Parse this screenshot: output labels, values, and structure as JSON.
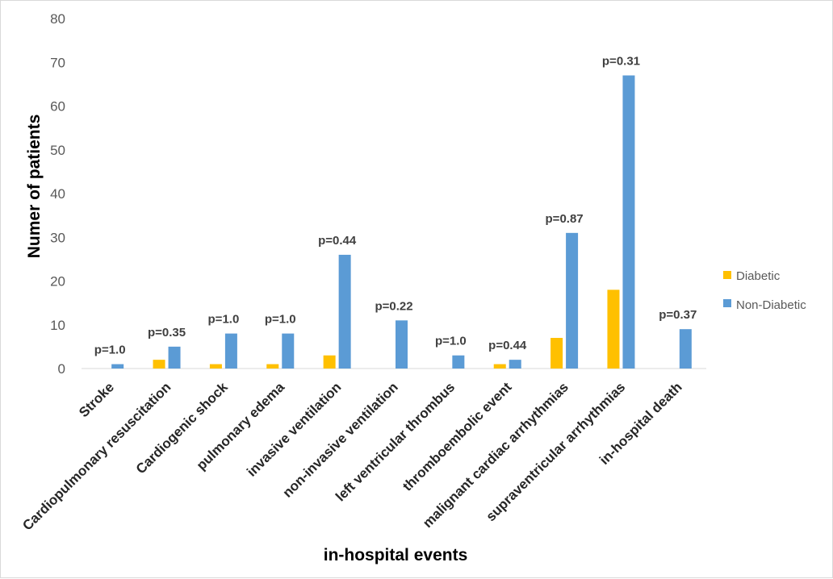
{
  "chart_data": {
    "type": "bar",
    "xlabel": "in-hospital events",
    "ylabel": "Numer of patients",
    "ylim": [
      0,
      80
    ],
    "yticks": [
      0,
      10,
      20,
      30,
      40,
      50,
      60,
      70,
      80
    ],
    "grid": false,
    "legend_position": "right",
    "categories": [
      "Stroke",
      "Cardiopulmonary resuscitation",
      "Cardiogenic shock",
      "pulmonary edema",
      "invasive ventilation",
      "non-invasive ventilation",
      "left ventricular thrombus",
      "thromboembolic event",
      "malignant cardiac arrhythmias",
      "supraventricular arrhythmias",
      "in-hospital death"
    ],
    "series": [
      {
        "name": "Diabetic",
        "color": "#FFC000",
        "values": [
          0,
          2,
          1,
          1,
          3,
          0,
          0,
          1,
          7,
          18,
          0
        ]
      },
      {
        "name": "Non-Diabetic",
        "color": "#5B9BD5",
        "values": [
          1,
          5,
          8,
          8,
          26,
          11,
          3,
          2,
          31,
          67,
          9
        ]
      }
    ],
    "annotations": [
      "p=1.0",
      "p=0.35",
      "p=1.0",
      "p=1.0",
      "p=0.44",
      "p=0.22",
      "p=1.0",
      "p=0.44",
      "p=0.87",
      "p=0.31",
      "p=0.37"
    ]
  }
}
